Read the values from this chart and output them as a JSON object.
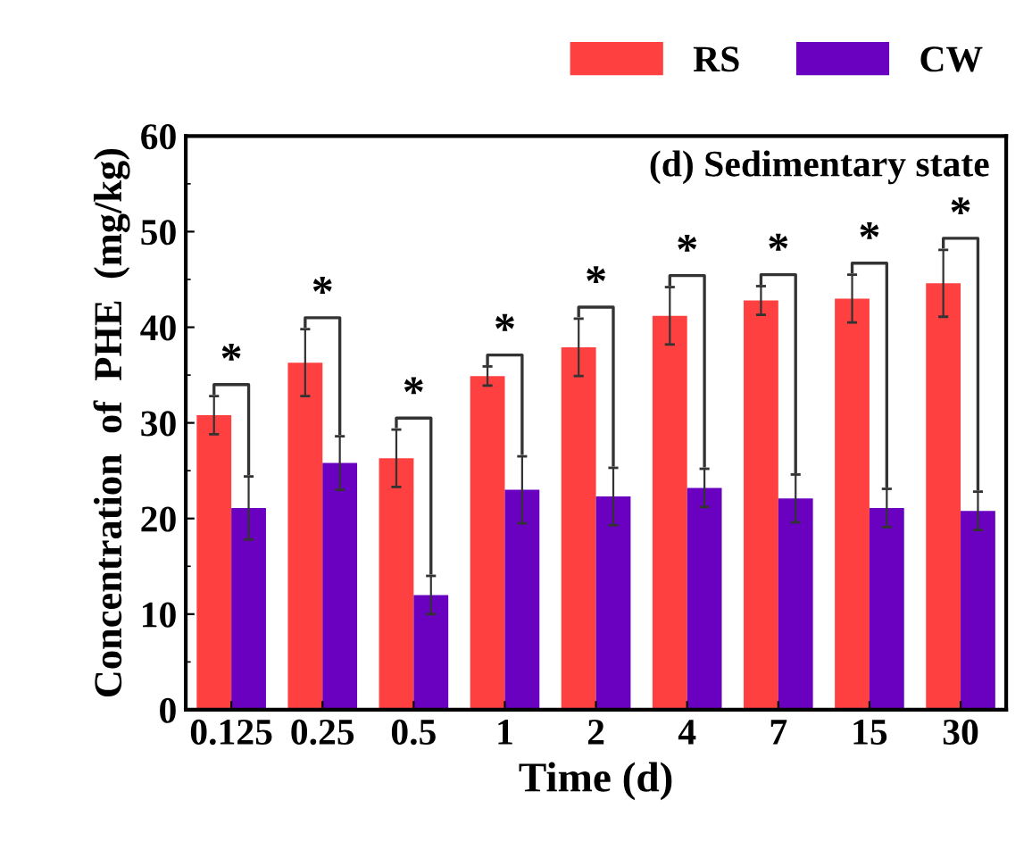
{
  "chart_data": {
    "type": "bar",
    "xlabel": "Time (d)",
    "ylabel": "Concentration  of  PHE  (mg/kg)",
    "categories": [
      "0.125",
      "0.25",
      "0.5",
      "1",
      "2",
      "4",
      "7",
      "15",
      "30"
    ],
    "series": [
      {
        "name": "RS",
        "color": "#ff4040",
        "values": [
          30.8,
          36.3,
          26.3,
          34.9,
          37.9,
          41.2,
          42.8,
          43.0,
          44.6
        ],
        "errors": [
          2,
          3.5,
          3,
          1,
          3,
          3,
          1.5,
          2.5,
          3.5
        ]
      },
      {
        "name": "CW",
        "color": "#6a00c0",
        "values": [
          21.1,
          25.8,
          12.0,
          23.0,
          22.3,
          23.2,
          22.1,
          21.1,
          20.8
        ],
        "errors": [
          3.3,
          2.8,
          2,
          3.5,
          3,
          2,
          2.5,
          2,
          2
        ]
      }
    ],
    "ylim": [
      0,
      60
    ],
    "yticks": [
      0,
      10,
      20,
      30,
      40,
      50,
      60
    ],
    "legend": "top right",
    "grid": false,
    "annotations": [
      "(d) Sedimentary state",
      {
        "text": "*",
        "x": "0.125",
        "y": 30.8
      },
      {
        "text": "*",
        "x": "0.25",
        "y": 36.3
      },
      {
        "text": "*",
        "x": "0.5",
        "y": 26.3
      },
      {
        "text": "*",
        "x": "1",
        "y": 34.9
      },
      {
        "text": "*",
        "x": "2",
        "y": 37.9
      },
      {
        "text": "*",
        "x": "4",
        "y": 41.2
      },
      {
        "text": "*",
        "x": "7",
        "y": 42.8
      },
      {
        "text": "*",
        "x": "15",
        "y": 43.0
      },
      {
        "text": "*",
        "x": "30",
        "y": 44.6
      }
    ]
  }
}
